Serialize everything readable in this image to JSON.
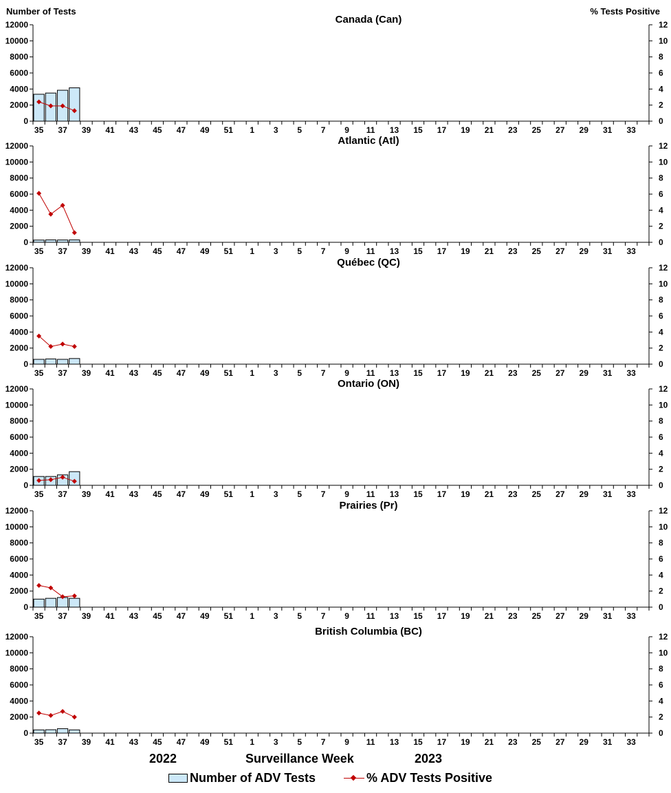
{
  "left_axis_title": "Number of Tests",
  "right_axis_title": "%  Tests Positive",
  "x_axis_title": "Surveillance Week",
  "year_labels": [
    "2022",
    "2023"
  ],
  "legend": {
    "bars": "Number of ADV Tests",
    "line": "% ADV Tests Positive"
  },
  "colors": {
    "bar_fill": "#cce8f8",
    "bar_stroke": "#000000",
    "line": "#c00000"
  },
  "chart_data": [
    {
      "type": "bar+line",
      "title": "Canada (Can)",
      "xlabel": "Surveillance Week",
      "ylabel": "Number of Tests",
      "y2label": "% Tests Positive",
      "ylim": [
        0,
        12000
      ],
      "y2lim": [
        0,
        12
      ],
      "yticks": [
        "0",
        "2000",
        "4000",
        "6000",
        "8000",
        "10000",
        "12000"
      ],
      "y2ticks": [
        "0",
        "2",
        "4",
        "6",
        "8",
        "10",
        "12"
      ],
      "weeks": [
        "35",
        "36",
        "37",
        "38",
        "39",
        "40",
        "41",
        "42",
        "43",
        "44",
        "45",
        "46",
        "47",
        "48",
        "49",
        "50",
        "51",
        "52",
        "1",
        "2",
        "3",
        "4",
        "5",
        "6",
        "7",
        "8",
        "9",
        "10",
        "11",
        "12",
        "13",
        "14",
        "15",
        "16",
        "17",
        "18",
        "19",
        "20",
        "21",
        "22",
        "23",
        "24",
        "25",
        "26",
        "27",
        "28",
        "29",
        "30",
        "31",
        "32",
        "33",
        "34"
      ],
      "xticks": [
        "35",
        "37",
        "39",
        "41",
        "43",
        "45",
        "47",
        "49",
        "51",
        "1",
        "3",
        "5",
        "7",
        "9",
        "11",
        "13",
        "15",
        "17",
        "19",
        "21",
        "23",
        "25",
        "27",
        "29",
        "31",
        "33"
      ],
      "series": [
        {
          "name": "Number of ADV Tests",
          "kind": "bar",
          "values": [
            3350,
            3500,
            3850,
            4150
          ]
        },
        {
          "name": "% ADV Tests Positive",
          "kind": "line",
          "values": [
            2.4,
            1.9,
            1.9,
            1.3
          ]
        }
      ]
    },
    {
      "type": "bar+line",
      "title": "Atlantic (Atl)",
      "xlabel": "Surveillance Week",
      "ylabel": "Number of Tests",
      "y2label": "% Tests Positive",
      "ylim": [
        0,
        12000
      ],
      "y2lim": [
        0,
        12
      ],
      "yticks": [
        "0",
        "2000",
        "4000",
        "6000",
        "8000",
        "10000",
        "12000"
      ],
      "y2ticks": [
        "0",
        "2",
        "4",
        "6",
        "8",
        "10",
        "12"
      ],
      "weeks": [
        "35",
        "36",
        "37",
        "38",
        "39",
        "40",
        "41",
        "42",
        "43",
        "44",
        "45",
        "46",
        "47",
        "48",
        "49",
        "50",
        "51",
        "52",
        "1",
        "2",
        "3",
        "4",
        "5",
        "6",
        "7",
        "8",
        "9",
        "10",
        "11",
        "12",
        "13",
        "14",
        "15",
        "16",
        "17",
        "18",
        "19",
        "20",
        "21",
        "22",
        "23",
        "24",
        "25",
        "26",
        "27",
        "28",
        "29",
        "30",
        "31",
        "32",
        "33",
        "34"
      ],
      "xticks": [
        "35",
        "37",
        "39",
        "41",
        "43",
        "45",
        "47",
        "49",
        "51",
        "1",
        "3",
        "5",
        "7",
        "9",
        "11",
        "13",
        "15",
        "17",
        "19",
        "21",
        "23",
        "25",
        "27",
        "29",
        "31",
        "33"
      ],
      "series": [
        {
          "name": "Number of ADV Tests",
          "kind": "bar",
          "values": [
            280,
            300,
            290,
            300
          ]
        },
        {
          "name": "% ADV Tests Positive",
          "kind": "line",
          "values": [
            6.1,
            3.5,
            4.6,
            1.2
          ]
        }
      ]
    },
    {
      "type": "bar+line",
      "title": "Québec (QC)",
      "xlabel": "Surveillance Week",
      "ylabel": "Number of Tests",
      "y2label": "% Tests Positive",
      "ylim": [
        0,
        12000
      ],
      "y2lim": [
        0,
        12
      ],
      "yticks": [
        "0",
        "2000",
        "4000",
        "6000",
        "8000",
        "10000",
        "12000"
      ],
      "y2ticks": [
        "0",
        "2",
        "4",
        "6",
        "8",
        "10",
        "12"
      ],
      "weeks": [
        "35",
        "36",
        "37",
        "38",
        "39",
        "40",
        "41",
        "42",
        "43",
        "44",
        "45",
        "46",
        "47",
        "48",
        "49",
        "50",
        "51",
        "52",
        "1",
        "2",
        "3",
        "4",
        "5",
        "6",
        "7",
        "8",
        "9",
        "10",
        "11",
        "12",
        "13",
        "14",
        "15",
        "16",
        "17",
        "18",
        "19",
        "20",
        "21",
        "22",
        "23",
        "24",
        "25",
        "26",
        "27",
        "28",
        "29",
        "30",
        "31",
        "32",
        "33",
        "34"
      ],
      "xticks": [
        "35",
        "37",
        "39",
        "41",
        "43",
        "45",
        "47",
        "49",
        "51",
        "1",
        "3",
        "5",
        "7",
        "9",
        "11",
        "13",
        "15",
        "17",
        "19",
        "21",
        "23",
        "25",
        "27",
        "29",
        "31",
        "33"
      ],
      "series": [
        {
          "name": "Number of ADV Tests",
          "kind": "bar",
          "values": [
            600,
            650,
            600,
            700
          ]
        },
        {
          "name": "% ADV Tests Positive",
          "kind": "line",
          "values": [
            3.5,
            2.2,
            2.5,
            2.2
          ]
        }
      ]
    },
    {
      "type": "bar+line",
      "title": "Ontario (ON)",
      "xlabel": "Surveillance Week",
      "ylabel": "Number of Tests",
      "y2label": "% Tests Positive",
      "ylim": [
        0,
        12000
      ],
      "y2lim": [
        0,
        12
      ],
      "yticks": [
        "0",
        "2000",
        "4000",
        "6000",
        "8000",
        "10000",
        "12000"
      ],
      "y2ticks": [
        "0",
        "2",
        "4",
        "6",
        "8",
        "10",
        "12"
      ],
      "weeks": [
        "35",
        "36",
        "37",
        "38",
        "39",
        "40",
        "41",
        "42",
        "43",
        "44",
        "45",
        "46",
        "47",
        "48",
        "49",
        "50",
        "51",
        "52",
        "1",
        "2",
        "3",
        "4",
        "5",
        "6",
        "7",
        "8",
        "9",
        "10",
        "11",
        "12",
        "13",
        "14",
        "15",
        "16",
        "17",
        "18",
        "19",
        "20",
        "21",
        "22",
        "23",
        "24",
        "25",
        "26",
        "27",
        "28",
        "29",
        "30",
        "31",
        "32",
        "33",
        "34"
      ],
      "xticks": [
        "35",
        "37",
        "39",
        "41",
        "43",
        "45",
        "47",
        "49",
        "51",
        "1",
        "3",
        "5",
        "7",
        "9",
        "11",
        "13",
        "15",
        "17",
        "19",
        "21",
        "23",
        "25",
        "27",
        "29",
        "31",
        "33"
      ],
      "series": [
        {
          "name": "Number of ADV Tests",
          "kind": "bar",
          "values": [
            1100,
            1100,
            1300,
            1700
          ]
        },
        {
          "name": "% ADV Tests Positive",
          "kind": "line",
          "values": [
            0.6,
            0.7,
            1.0,
            0.5
          ]
        }
      ]
    },
    {
      "type": "bar+line",
      "title": "Prairies (Pr)",
      "xlabel": "Surveillance Week",
      "ylabel": "Number of Tests",
      "y2label": "% Tests Positive",
      "ylim": [
        0,
        12000
      ],
      "y2lim": [
        0,
        12
      ],
      "yticks": [
        "0",
        "2000",
        "4000",
        "6000",
        "8000",
        "10000",
        "12000"
      ],
      "y2ticks": [
        "0",
        "2",
        "4",
        "6",
        "8",
        "10",
        "12"
      ],
      "weeks": [
        "35",
        "36",
        "37",
        "38",
        "39",
        "40",
        "41",
        "42",
        "43",
        "44",
        "45",
        "46",
        "47",
        "48",
        "49",
        "50",
        "51",
        "52",
        "1",
        "2",
        "3",
        "4",
        "5",
        "6",
        "7",
        "8",
        "9",
        "10",
        "11",
        "12",
        "13",
        "14",
        "15",
        "16",
        "17",
        "18",
        "19",
        "20",
        "21",
        "22",
        "23",
        "24",
        "25",
        "26",
        "27",
        "28",
        "29",
        "30",
        "31",
        "32",
        "33",
        "34"
      ],
      "xticks": [
        "35",
        "37",
        "39",
        "41",
        "43",
        "45",
        "47",
        "49",
        "51",
        "1",
        "3",
        "5",
        "7",
        "9",
        "11",
        "13",
        "15",
        "17",
        "19",
        "21",
        "23",
        "25",
        "27",
        "29",
        "31",
        "33"
      ],
      "series": [
        {
          "name": "Number of ADV Tests",
          "kind": "bar",
          "values": [
            1000,
            1100,
            1200,
            1100
          ]
        },
        {
          "name": "% ADV Tests Positive",
          "kind": "line",
          "values": [
            2.7,
            2.4,
            1.3,
            1.4
          ]
        }
      ]
    },
    {
      "type": "bar+line",
      "title": "British Columbia (BC)",
      "xlabel": "Surveillance Week",
      "ylabel": "Number of Tests",
      "y2label": "% Tests Positive",
      "ylim": [
        0,
        12000
      ],
      "y2lim": [
        0,
        12
      ],
      "yticks": [
        "0",
        "2000",
        "4000",
        "6000",
        "8000",
        "10000",
        "12000"
      ],
      "y2ticks": [
        "0",
        "2",
        "4",
        "6",
        "8",
        "10",
        "12"
      ],
      "weeks": [
        "35",
        "36",
        "37",
        "38",
        "39",
        "40",
        "41",
        "42",
        "43",
        "44",
        "45",
        "46",
        "47",
        "48",
        "49",
        "50",
        "51",
        "52",
        "1",
        "2",
        "3",
        "4",
        "5",
        "6",
        "7",
        "8",
        "9",
        "10",
        "11",
        "12",
        "13",
        "14",
        "15",
        "16",
        "17",
        "18",
        "19",
        "20",
        "21",
        "22",
        "23",
        "24",
        "25",
        "26",
        "27",
        "28",
        "29",
        "30",
        "31",
        "32",
        "33",
        "34"
      ],
      "xticks": [
        "35",
        "37",
        "39",
        "41",
        "43",
        "45",
        "47",
        "49",
        "51",
        "1",
        "3",
        "5",
        "7",
        "9",
        "11",
        "13",
        "15",
        "17",
        "19",
        "21",
        "23",
        "25",
        "27",
        "29",
        "31",
        "33"
      ],
      "series": [
        {
          "name": "Number of ADV Tests",
          "kind": "bar",
          "values": [
            400,
            420,
            550,
            400
          ]
        },
        {
          "name": "% ADV Tests Positive",
          "kind": "line",
          "values": [
            2.5,
            2.2,
            2.7,
            2.0
          ]
        }
      ]
    }
  ]
}
